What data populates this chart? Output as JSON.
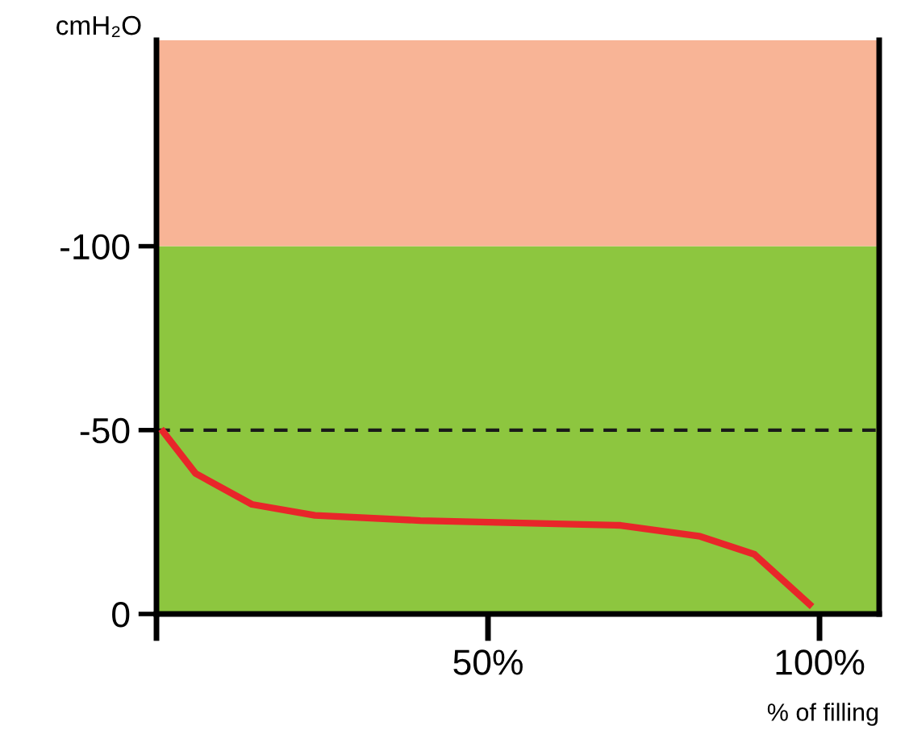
{
  "chart_data": {
    "type": "line",
    "ylabel": "cmH₂O",
    "xlabel": "% of filling",
    "x": [
      1,
      5.9,
      14.4,
      23.9,
      39.8,
      70,
      82,
      90.2,
      98.5
    ],
    "series": [
      {
        "color": "#e8262a",
        "values": [
          -49.6,
          -38.2,
          -29.8,
          -26.8,
          -25.4,
          -24.1,
          -21.1,
          -16.2,
          -2.6
        ]
      }
    ],
    "xlim": [
      0,
      109
    ],
    "xticks": [
      {
        "value": 0,
        "label": null
      },
      {
        "value": 50,
        "label": "50%"
      },
      {
        "value": 100,
        "label": "100%"
      }
    ],
    "ylim": [
      0,
      -156
    ],
    "yticks": [
      0,
      {
        "value": -50,
        "label": "-50"
      },
      {
        "value": -100,
        "label": "-100"
      }
    ],
    "bands": [
      {
        "axis": "y",
        "from": 0,
        "to": -100,
        "color": "#8dc63f"
      },
      {
        "axis": "y",
        "from": -100,
        "to": -156,
        "color": "#f8b496"
      }
    ],
    "ref_lines": [
      {
        "axis": "y",
        "value": -50,
        "color": "#1a1a1a",
        "line_style": "dashed"
      }
    ],
    "grid": false,
    "legend": false,
    "marker": "none",
    "line_style": "solid"
  }
}
